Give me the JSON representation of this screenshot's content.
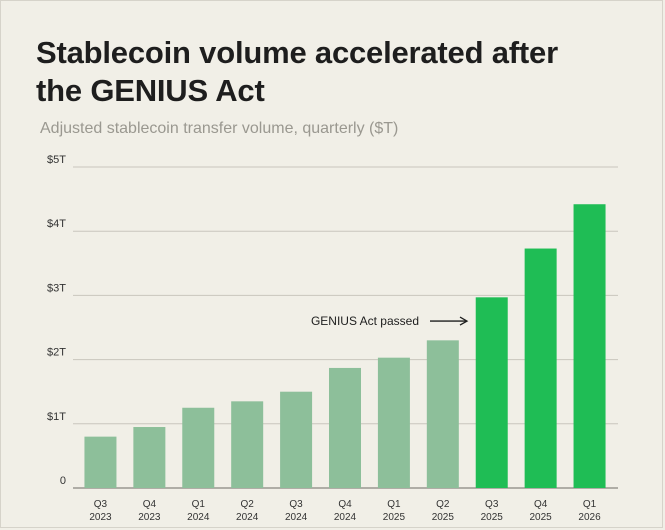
{
  "header": {
    "title_line1": "Stablecoin volume accelerated after",
    "title_line2": "the GENIUS Act",
    "subtitle": "Adjusted stablecoin transfer volume, quarterly ($T)"
  },
  "colors": {
    "pre_act_bar": "#8dbf9a",
    "post_act_bar": "#1fbd55",
    "gridline": "#c9c6bd",
    "background": "#f1efe7"
  },
  "chart_data": {
    "type": "bar",
    "title": "Stablecoin volume accelerated after the GENIUS Act",
    "subtitle": "Adjusted stablecoin transfer volume, quarterly ($T)",
    "categories": [
      [
        "Q3",
        "2023"
      ],
      [
        "Q4",
        "2023"
      ],
      [
        "Q1",
        "2024"
      ],
      [
        "Q2",
        "2024"
      ],
      [
        "Q3",
        "2024"
      ],
      [
        "Q4",
        "2024"
      ],
      [
        "Q1",
        "2025"
      ],
      [
        "Q2",
        "2025"
      ],
      [
        "Q3",
        "2025"
      ],
      [
        "Q4",
        "2025"
      ],
      [
        "Q1",
        "2026"
      ]
    ],
    "values": [
      0.8,
      0.95,
      1.25,
      1.35,
      1.5,
      1.87,
      2.03,
      2.3,
      2.97,
      3.73,
      4.42
    ],
    "highlight_from_index": 8,
    "ylim": [
      0,
      5
    ],
    "yticks": [
      {
        "value": 0,
        "label": "0"
      },
      {
        "value": 1,
        "label": "$1T"
      },
      {
        "value": 2,
        "label": "$2T"
      },
      {
        "value": 3,
        "label": "$3T"
      },
      {
        "value": 4,
        "label": "$4T"
      },
      {
        "value": 5,
        "label": "$5T"
      }
    ],
    "grid": true,
    "annotation": {
      "text": "GENIUS Act passed",
      "arrow": "right",
      "at_value": 2.6
    }
  }
}
